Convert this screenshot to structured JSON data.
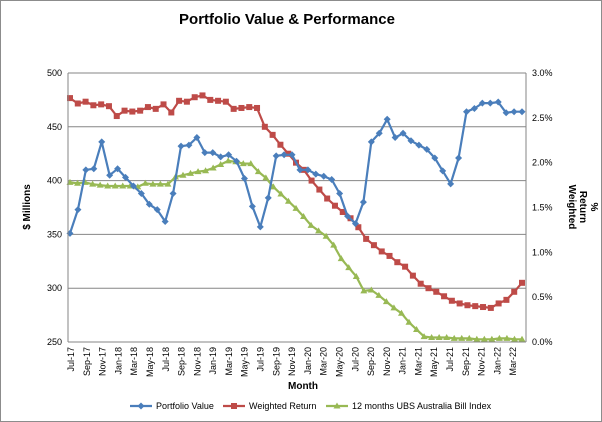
{
  "chart_data": {
    "type": "line",
    "title": "Portfolio Value & Performance",
    "xlabel": "Month",
    "ylabel": "$ Millions",
    "y2label_lines": [
      "Weighted",
      "Return",
      "%"
    ],
    "ylim": [
      250,
      500
    ],
    "y2lim": [
      0,
      3
    ],
    "yticks": [
      "250",
      "300",
      "350",
      "400",
      "450",
      "500"
    ],
    "y2ticks": [
      "0.0%",
      "0.5%",
      "1.0%",
      "1.5%",
      "2.0%",
      "2.5%",
      "3.0%"
    ],
    "x_labels": [
      "Jul-17",
      "Sep-17",
      "Nov-17",
      "Jan-18",
      "Mar-18",
      "May-18",
      "Jul-18",
      "Sep-18",
      "Nov-18",
      "Jan-19",
      "Mar-19",
      "May-19",
      "Jul-19",
      "Sep-19",
      "Nov-19",
      "Jan-20",
      "Mar-20",
      "May-20",
      "Jul-20",
      "Sep-20",
      "Nov-20",
      "Jan-21",
      "Mar-21",
      "May-21",
      "Jul-21",
      "Sep-21",
      "Nov-21",
      "Jan-22",
      "Mar-22"
    ],
    "grid": true,
    "legend_position": "bottom",
    "series": [
      {
        "name": "Portfolio Value",
        "axis": "left",
        "color": "#4a7ebb",
        "marker": "diamond",
        "values": [
          351,
          373,
          410,
          411,
          436,
          405,
          411,
          403,
          395,
          388,
          378,
          373,
          362,
          388,
          432,
          433,
          440,
          426,
          426,
          422,
          424,
          418,
          402,
          376,
          357,
          384,
          423,
          424,
          424,
          410,
          410,
          406,
          404,
          401,
          388,
          367,
          360,
          380,
          436,
          444,
          457,
          440,
          444,
          437,
          433,
          429,
          421,
          409,
          397,
          421,
          464,
          467,
          472,
          472,
          473,
          463,
          464,
          464
        ]
      },
      {
        "name": "Weighted Return",
        "axis": "right",
        "color": "#be4b48",
        "marker": "square",
        "values": [
          2.72,
          2.66,
          2.68,
          2.64,
          2.65,
          2.63,
          2.52,
          2.58,
          2.57,
          2.58,
          2.62,
          2.6,
          2.65,
          2.56,
          2.69,
          2.68,
          2.73,
          2.75,
          2.7,
          2.69,
          2.68,
          2.6,
          2.61,
          2.62,
          2.61,
          2.4,
          2.31,
          2.2,
          2.1,
          2.0,
          1.92,
          1.8,
          1.7,
          1.6,
          1.52,
          1.45,
          1.38,
          1.28,
          1.15,
          1.08,
          1.01,
          0.96,
          0.89,
          0.84,
          0.74,
          0.65,
          0.6,
          0.56,
          0.51,
          0.46,
          0.43,
          0.41,
          0.4,
          0.39,
          0.38,
          0.43,
          0.47,
          0.56,
          0.66
        ]
      },
      {
        "name": "12 months UBS Australia Bill Index",
        "axis": "right",
        "color": "#98b954",
        "marker": "triangle",
        "values": [
          1.78,
          1.77,
          1.78,
          1.76,
          1.75,
          1.74,
          1.74,
          1.74,
          1.74,
          1.73,
          1.77,
          1.76,
          1.76,
          1.76,
          1.84,
          1.86,
          1.88,
          1.9,
          1.91,
          1.94,
          1.98,
          2.02,
          2.01,
          1.99,
          1.99,
          1.9,
          1.83,
          1.73,
          1.65,
          1.57,
          1.49,
          1.4,
          1.3,
          1.24,
          1.18,
          1.08,
          0.93,
          0.83,
          0.73,
          0.57,
          0.58,
          0.52,
          0.45,
          0.38,
          0.32,
          0.22,
          0.14,
          0.06,
          0.05,
          0.05,
          0.05,
          0.04,
          0.04,
          0.04,
          0.03,
          0.03,
          0.03,
          0.04,
          0.04,
          0.03,
          0.03
        ]
      }
    ]
  }
}
